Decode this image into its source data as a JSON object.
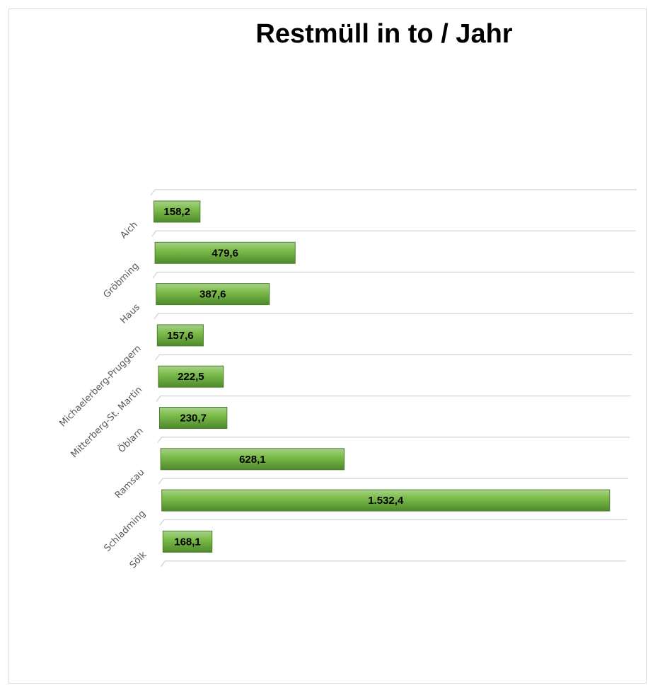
{
  "chart_data": {
    "type": "bar",
    "orientation": "horizontal",
    "title": "Restmüll in to / Jahr",
    "categories": [
      "Aich",
      "Gröbming",
      "Haus",
      "Michaelerberg-Pruggern",
      "Mitterberg-St. Martin",
      "Öblarn",
      "Ramsau",
      "Schladming",
      "Sölk"
    ],
    "values": [
      158.2,
      479.6,
      387.6,
      157.6,
      222.5,
      230.7,
      628.1,
      1532.4,
      168.1
    ],
    "value_labels": [
      "158,2",
      "479,6",
      "387,6",
      "157,6",
      "222,5",
      "230,7",
      "628,1",
      "1.532,4",
      "168,1"
    ],
    "xlim": [
      0,
      1600
    ],
    "grid": true,
    "bar_color": "#70ad47",
    "legend": "none"
  }
}
